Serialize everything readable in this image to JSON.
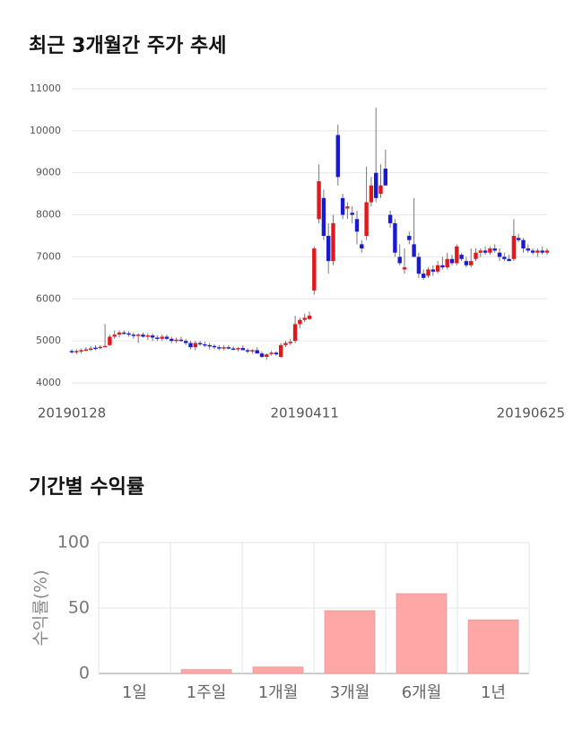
{
  "chart_data": [
    {
      "type": "candlestick",
      "title": "최근 3개월간 주가 추세",
      "categories": [
        "20190128",
        null,
        null,
        null,
        null,
        null,
        null,
        null,
        null,
        null,
        null,
        null,
        null,
        null,
        null,
        null,
        null,
        null,
        null,
        null,
        null,
        null,
        null,
        null,
        null,
        null,
        null,
        null,
        null,
        null,
        null,
        null,
        null,
        null,
        null,
        null,
        null,
        null,
        null,
        null,
        null,
        null,
        null,
        null,
        null,
        null,
        null,
        null,
        null,
        "20190411",
        null,
        null,
        null,
        null,
        null,
        null,
        null,
        null,
        null,
        null,
        null,
        null,
        null,
        null,
        null,
        null,
        null,
        null,
        null,
        null,
        null,
        null,
        null,
        null,
        null,
        null,
        null,
        null,
        null,
        null,
        null,
        null,
        null,
        null,
        null,
        null,
        null,
        null,
        null,
        null,
        null,
        null,
        null,
        null,
        null,
        null,
        null,
        null,
        null,
        null,
        "20190625"
      ],
      "open": [
        4760,
        4750,
        4760,
        4780,
        4800,
        4840,
        4830,
        4860,
        4900,
        5100,
        5150,
        5200,
        5180,
        5150,
        5120,
        5150,
        5100,
        5130,
        5080,
        5050,
        5100,
        5050,
        5000,
        5030,
        5000,
        4950,
        4850,
        4950,
        4920,
        4900,
        4880,
        4850,
        4830,
        4850,
        4820,
        4800,
        4830,
        4780,
        4750,
        4780,
        4700,
        4620,
        4700,
        4720,
        4620,
        4900,
        4950,
        5000,
        5400,
        5500,
        5520,
        6200,
        7900,
        8400,
        7500,
        6900,
        9900,
        8400,
        8150,
        8050,
        7900,
        7300,
        7500,
        8300,
        9000,
        8500,
        9100,
        8000,
        7800,
        7000,
        6700,
        7500,
        7300,
        7000,
        6600,
        6550,
        6700,
        6650,
        6800,
        6750,
        6950,
        6850,
        7050,
        6900,
        6800,
        6950,
        7100,
        7150,
        7100,
        7200,
        7100,
        7000,
        6950,
        6950,
        7450,
        7400,
        7200,
        7150,
        7100,
        7150,
        7100
      ],
      "high": [
        4800,
        4800,
        4820,
        4850,
        4880,
        4900,
        4900,
        5400,
        5150,
        5250,
        5250,
        5250,
        5230,
        5200,
        5180,
        5200,
        5180,
        5180,
        5130,
        5150,
        5150,
        5100,
        5080,
        5100,
        5050,
        5000,
        5000,
        5000,
        4980,
        4950,
        4920,
        4900,
        4900,
        4900,
        4870,
        4850,
        4900,
        4820,
        4800,
        4850,
        4750,
        4700,
        4760,
        4750,
        4950,
        5000,
        5050,
        5600,
        5550,
        5650,
        5700,
        7250,
        9200,
        8600,
        7800,
        8000,
        10150,
        8500,
        8300,
        8200,
        8100,
        7400,
        9150,
        8900,
        10550,
        9200,
        9550,
        8100,
        7900,
        7300,
        7200,
        7600,
        8400,
        7100,
        6700,
        6750,
        6800,
        6900,
        7000,
        7100,
        7050,
        7300,
        7100,
        7000,
        7200,
        7200,
        7200,
        7250,
        7250,
        7300,
        7200,
        7100,
        7050,
        7900,
        7550,
        7450,
        7300,
        7200,
        7200,
        7250,
        7200
      ],
      "low": [
        4700,
        4680,
        4700,
        4740,
        4760,
        4780,
        4800,
        4850,
        4880,
        5050,
        5080,
        5150,
        5100,
        5050,
        4950,
        5080,
        5020,
        5000,
        5000,
        5000,
        5020,
        4950,
        4950,
        4980,
        4900,
        4800,
        4780,
        4880,
        4850,
        4800,
        4800,
        4780,
        4780,
        4800,
        4780,
        4750,
        4780,
        4700,
        4700,
        4720,
        4600,
        4560,
        4650,
        4650,
        4600,
        4850,
        4900,
        4950,
        5300,
        5450,
        5500,
        6100,
        7800,
        7400,
        6600,
        6800,
        8700,
        7900,
        7900,
        7800,
        7300,
        7100,
        7400,
        8200,
        8300,
        8400,
        8700,
        7700,
        7000,
        6800,
        6600,
        7300,
        7000,
        6500,
        6450,
        6500,
        6550,
        6600,
        6700,
        6700,
        6800,
        6800,
        6900,
        6750,
        6750,
        6900,
        7000,
        7050,
        7050,
        7100,
        6900,
        6900,
        6900,
        6900,
        7350,
        7100,
        7100,
        7050,
        7000,
        7050,
        7050
      ],
      "close": [
        4750,
        4760,
        4780,
        4800,
        4820,
        4820,
        4860,
        4880,
        5100,
        5150,
        5200,
        5180,
        5150,
        5120,
        5150,
        5100,
        5130,
        5080,
        5050,
        5100,
        5050,
        5000,
        5030,
        5000,
        4950,
        4850,
        4950,
        4920,
        4900,
        4880,
        4850,
        4830,
        4850,
        4820,
        4800,
        4830,
        4780,
        4750,
        4780,
        4700,
        4620,
        4680,
        4720,
        4680,
        4900,
        4950,
        4980,
        5400,
        5500,
        5550,
        5600,
        7200,
        8800,
        7500,
        6900,
        7800,
        8900,
        8000,
        8200,
        8000,
        7600,
        7200,
        8300,
        8700,
        8400,
        8700,
        8700,
        7800,
        7100,
        6850,
        6750,
        7400,
        7000,
        6600,
        6500,
        6700,
        6650,
        6800,
        6750,
        6950,
        6850,
        7250,
        6950,
        6800,
        6900,
        7100,
        7150,
        7100,
        7200,
        7150,
        7000,
        6950,
        6900,
        7500,
        7400,
        7200,
        7150,
        7100,
        7150,
        7100,
        7150
      ],
      "up_color": "#e0191c",
      "down_color": "#1a1ad0",
      "ylim": [
        4000,
        11000
      ],
      "yticks": [
        4000,
        5000,
        6000,
        7000,
        8000,
        9000,
        10000,
        11000
      ],
      "grid": true
    },
    {
      "type": "bar",
      "title": "기간별 수익률",
      "ylabel": "수익률(%)",
      "categories": [
        "1일",
        "1주일",
        "1개월",
        "3개월",
        "6개월",
        "1년"
      ],
      "values": [
        0,
        3,
        5,
        48,
        61,
        41
      ],
      "color": "#ffa6a6",
      "ylim": [
        0,
        100
      ],
      "yticks": [
        0,
        50,
        100
      ],
      "grid": true
    }
  ]
}
